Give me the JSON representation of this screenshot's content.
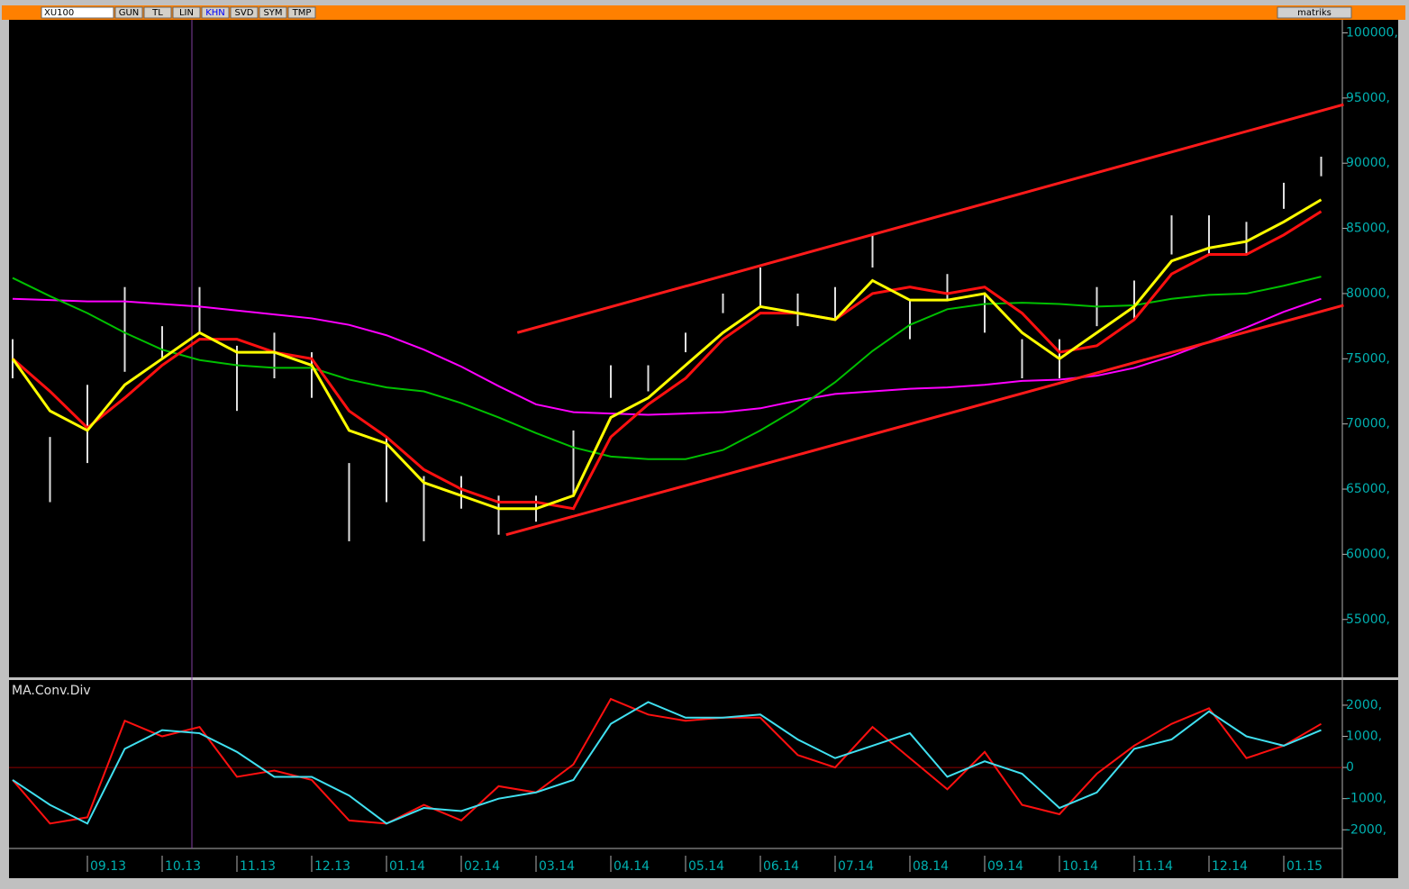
{
  "toolbar": {
    "symbol": "XU100",
    "buttons": [
      "GUN",
      "TL",
      "LIN",
      "KHN",
      "SVD",
      "SYM",
      "TMP"
    ],
    "brand": "matriks"
  },
  "chart_data": [
    {
      "type": "hilo",
      "color": "#e0e0e0",
      "categories": [
        null,
        null,
        "09.13",
        null,
        "10.13",
        null,
        "11.13",
        null,
        "12.13",
        null,
        "01.14",
        null,
        "02.14",
        null,
        "03.14",
        null,
        "04.14",
        null,
        "05.14",
        null,
        "06.14",
        null,
        "07.14",
        null,
        "08.14",
        null,
        "09.14",
        null,
        "10.14",
        null,
        "11.14",
        null,
        "12.14",
        null,
        "01.15",
        null
      ],
      "high": [
        76500,
        69000,
        73000,
        80500,
        77500,
        80500,
        76000,
        77000,
        75500,
        67000,
        69000,
        66000,
        66000,
        64500,
        64500,
        69500,
        74500,
        74500,
        77000,
        80000,
        82000,
        80000,
        80500,
        84500,
        79500,
        81500,
        80000,
        76500,
        76500,
        80500,
        81000,
        86000,
        86000,
        85500,
        88500,
        90500
      ],
      "low": [
        73500,
        64000,
        67000,
        74000,
        75000,
        77000,
        71000,
        73500,
        72000,
        61000,
        64000,
        61000,
        63500,
        61500,
        62500,
        64500,
        72000,
        72500,
        75500,
        78500,
        79000,
        77500,
        78000,
        82000,
        76500,
        79500,
        77000,
        73500,
        73500,
        77500,
        78000,
        83000,
        83000,
        83000,
        86500,
        89000
      ],
      "series": [
        {
          "color": "#ff00ff",
          "values": [
            79600,
            79500,
            79400,
            79400,
            79200,
            79000,
            78700,
            78400,
            78100,
            77600,
            76800,
            75700,
            74400,
            72900,
            71500,
            70900,
            70800,
            70700,
            70800,
            70900,
            71200,
            71800,
            72300,
            72500,
            72700,
            72800,
            73000,
            73300,
            73400,
            73700,
            74300,
            75200,
            76300,
            77400,
            78600,
            79600
          ]
        },
        {
          "color": "#00c000",
          "values": [
            81200,
            79800,
            78500,
            77000,
            75700,
            74900,
            74500,
            74300,
            74300,
            73400,
            72800,
            72500,
            71600,
            70500,
            69300,
            68200,
            67500,
            67300,
            67300,
            68000,
            69500,
            71200,
            73200,
            75600,
            77600,
            78800,
            79200,
            79300,
            79200,
            79000,
            79100,
            79600,
            79900,
            80000,
            80600,
            81300
          ]
        },
        {
          "color": "#ff1010",
          "values": [
            75000,
            72500,
            69700,
            72000,
            74500,
            76500,
            76500,
            75500,
            75000,
            71000,
            69000,
            66500,
            65000,
            64000,
            64000,
            63500,
            69000,
            71500,
            73500,
            76500,
            78500,
            78500,
            78000,
            80000,
            80500,
            80000,
            80500,
            78500,
            75500,
            76000,
            78000,
            81500,
            83000,
            83000,
            84500,
            86300
          ]
        },
        {
          "color": "#ffff00",
          "values": [
            75000,
            71000,
            69500,
            73000,
            75000,
            77000,
            75500,
            75500,
            74500,
            69500,
            68500,
            65500,
            64500,
            63500,
            63500,
            64500,
            70500,
            72000,
            74500,
            77000,
            79000,
            78500,
            78000,
            81000,
            79500,
            79500,
            80000,
            77000,
            75000,
            77000,
            79000,
            82500,
            83500,
            84000,
            85500,
            87200
          ]
        }
      ],
      "trendlines": [
        {
          "color": "#ff1a1a",
          "x": [
            13.5,
            35.6
          ],
          "values": [
            77000,
            94500
          ]
        },
        {
          "color": "#ff1a1a",
          "x": [
            13.2,
            35.6
          ],
          "values": [
            61500,
            79100
          ]
        }
      ],
      "ylim": [
        50700,
        101000
      ],
      "yticks": [
        {
          "value": 100000,
          "label": "100000,"
        },
        {
          "value": 95000,
          "label": "95000,"
        },
        {
          "value": 90000,
          "label": "90000,"
        },
        {
          "value": 85000,
          "label": "85000,"
        },
        {
          "value": 80000,
          "label": "80000,"
        },
        {
          "value": 75000,
          "label": "75000,"
        },
        {
          "value": 70000,
          "label": "70000,"
        },
        {
          "value": 65000,
          "label": "65000,"
        },
        {
          "value": 60000,
          "label": "60000,"
        },
        {
          "value": 55000,
          "label": "55000,"
        }
      ]
    },
    {
      "type": "line",
      "title": "MA.Conv.Div",
      "zero_line": true,
      "series": [
        {
          "color": "#ff1010",
          "values": [
            -400,
            -1800,
            -1600,
            1500,
            1000,
            1300,
            -300,
            -100,
            -400,
            -1700,
            -1800,
            -1200,
            -1700,
            -600,
            -800,
            100,
            2200,
            1700,
            1500,
            1600,
            1600,
            400,
            0,
            1300,
            300,
            -700,
            500,
            -1200,
            -1500,
            -200,
            700,
            1400,
            1900,
            300,
            700,
            1400
          ]
        },
        {
          "color": "#40e0f0",
          "values": [
            -400,
            -1200,
            -1800,
            600,
            1200,
            1100,
            500,
            -300,
            -300,
            -900,
            -1800,
            -1300,
            -1400,
            -1000,
            -800,
            -400,
            1400,
            2100,
            1600,
            1600,
            1700,
            900,
            300,
            700,
            1100,
            -300,
            200,
            -200,
            -1300,
            -800,
            600,
            900,
            1800,
            1000,
            700,
            1200
          ]
        }
      ],
      "ylim": [
        -2600,
        2750
      ],
      "yticks": [
        {
          "value": 2000,
          "label": "2000,"
        },
        {
          "value": 1000,
          "label": "1000,"
        },
        0,
        {
          "value": -1000,
          "label": "-1000,"
        },
        {
          "value": -2000,
          "label": "-2000,"
        }
      ]
    }
  ]
}
